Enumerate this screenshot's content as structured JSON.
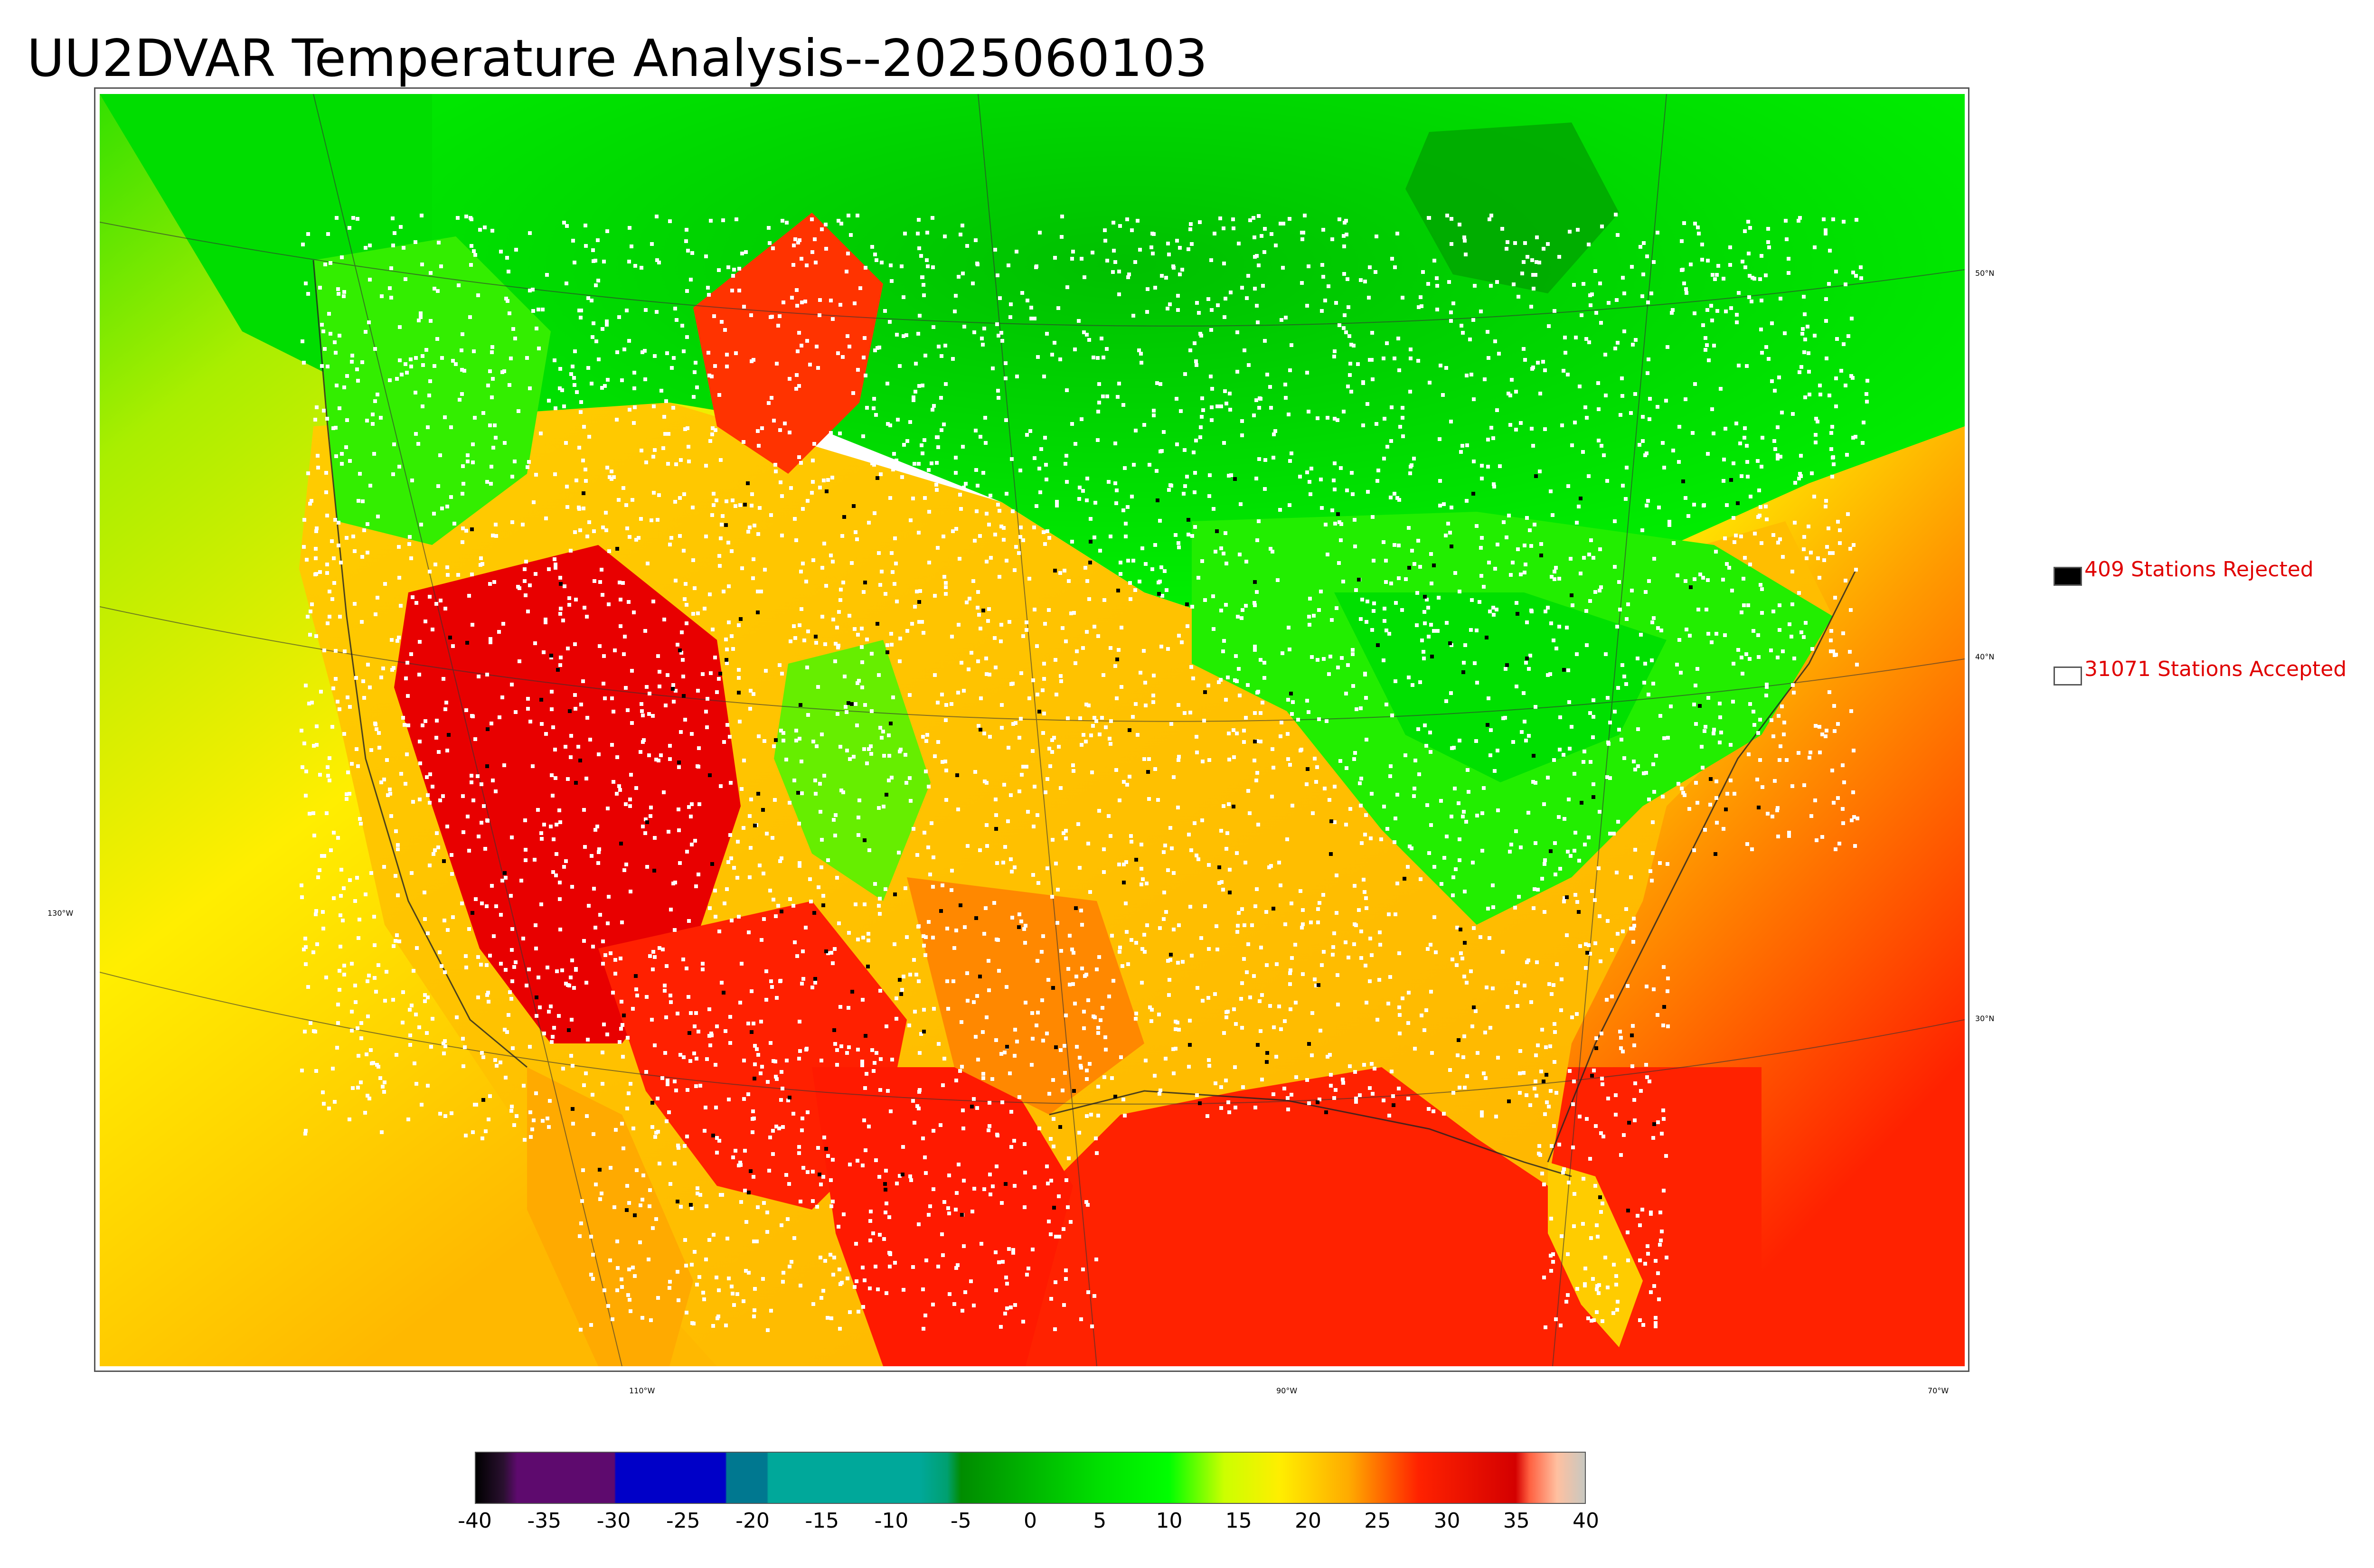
{
  "title": "UU2DVAR Temperature Analysis--2025060103",
  "legend": {
    "rejected_label": "409 Stations Rejected",
    "rejected_color": "#000000",
    "accepted_label": "31071 Stations Accepted",
    "accepted_color": "#ffffff"
  },
  "graticule": {
    "lat_labels": [
      "50°N",
      "40°N",
      "30°N"
    ],
    "lon_labels": [
      "130°W",
      "110°W",
      "90°W",
      "70°W"
    ]
  },
  "colorbar": {
    "ticks": [
      "-40",
      "-35",
      "-30",
      "-25",
      "-20",
      "-15",
      "-10",
      "-5",
      "0",
      "5",
      "10",
      "15",
      "20",
      "25",
      "30",
      "35",
      "40"
    ],
    "range": [
      -40,
      40
    ],
    "stops": [
      {
        "v": -40,
        "c": "#000000"
      },
      {
        "v": -38,
        "c": "#2a1030"
      },
      {
        "v": -37,
        "c": "#5e0a6e"
      },
      {
        "v": -30,
        "c": "#5e0a6e"
      },
      {
        "v": -29.9,
        "c": "#0000c8"
      },
      {
        "v": -22,
        "c": "#0000c8"
      },
      {
        "v": -21.9,
        "c": "#007890"
      },
      {
        "v": -19,
        "c": "#007890"
      },
      {
        "v": -18.9,
        "c": "#00a89a"
      },
      {
        "v": -8,
        "c": "#00a89a"
      },
      {
        "v": -6,
        "c": "#00a070"
      },
      {
        "v": -5,
        "c": "#008c00"
      },
      {
        "v": 5,
        "c": "#00e000"
      },
      {
        "v": 10,
        "c": "#00ff00"
      },
      {
        "v": 14,
        "c": "#ccff00"
      },
      {
        "v": 18,
        "c": "#ffee00"
      },
      {
        "v": 23,
        "c": "#ffaa00"
      },
      {
        "v": 28,
        "c": "#ff2200"
      },
      {
        "v": 35,
        "c": "#d40000"
      },
      {
        "v": 36,
        "c": "#ff6040"
      },
      {
        "v": 38,
        "c": "#ffc0a0"
      },
      {
        "v": 40,
        "c": "#c8c8c0"
      }
    ]
  }
}
